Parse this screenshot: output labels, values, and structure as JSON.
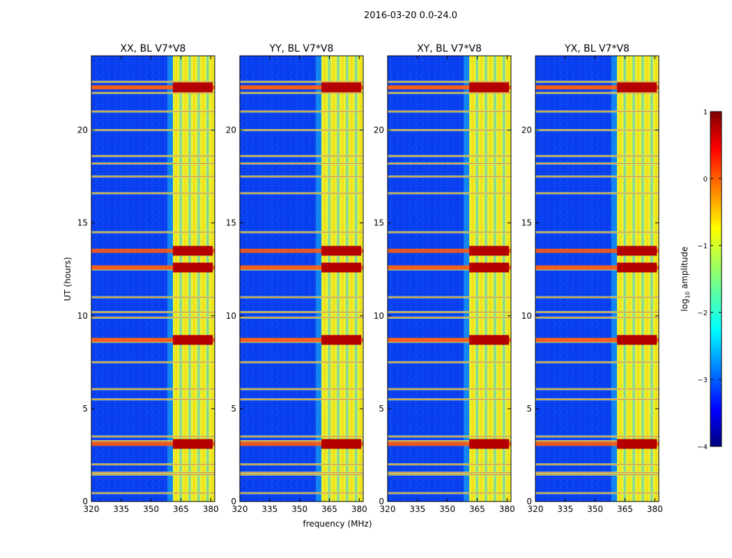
{
  "figure_title": "2016-03-20 0.0-24.0",
  "chart_data": {
    "type": "heatmap",
    "suptitle": "2016-03-20 0.0-24.0",
    "xlabel": "frequency (MHz)",
    "ylabel": "UT (hours)",
    "xlim": [
      320,
      382
    ],
    "ylim": [
      0,
      24
    ],
    "xticks": [
      320,
      335,
      350,
      365,
      380
    ],
    "yticks": [
      0,
      5,
      10,
      15,
      20
    ],
    "panels": [
      {
        "title": "XX, BL V7*V8",
        "pol": "XX"
      },
      {
        "title": "YY, BL V7*V8",
        "pol": "YY"
      },
      {
        "title": "XY, BL V7*V8",
        "pol": "XY"
      },
      {
        "title": "YX, BL V7*V8",
        "pol": "YX"
      }
    ],
    "band": {
      "start_mhz": 361,
      "end_mhz": 381,
      "columns_mhz": [
        361,
        365.5,
        370,
        374.5,
        379
      ]
    },
    "rfi_hours": [
      0.45,
      1.45,
      1.55,
      2.0,
      3.25,
      3.5,
      5.5,
      6.05,
      7.5,
      8.6,
      8.75,
      9.9,
      10.2,
      11.0,
      12.5,
      12.65,
      14.5,
      16.6,
      17.5,
      18.2,
      18.6,
      20.0,
      21.0,
      22.0,
      22.3,
      22.6
    ],
    "strong_hours": [
      3.1,
      8.7,
      12.6,
      13.5,
      22.3
    ],
    "colorbar": {
      "label_prefix": "log",
      "label_sub": "10",
      "label_suffix": " amplitude",
      "min": -4,
      "max": 1,
      "ticks": [
        1,
        0,
        -1,
        -2,
        -3,
        -4
      ],
      "tick_labels": [
        "1",
        "0",
        "−1",
        "−2",
        "−3",
        "−4"
      ],
      "colormap": "jet"
    }
  }
}
